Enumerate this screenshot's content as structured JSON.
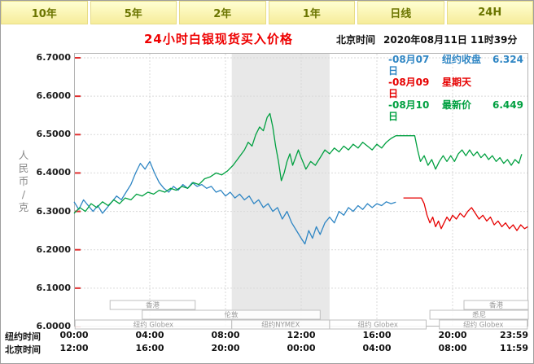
{
  "tabs": {
    "items": [
      "10年",
      "5年",
      "2年",
      "1年",
      "日线",
      "24H"
    ],
    "active": "24H"
  },
  "header": {
    "title": "24小时白银现货买入价格",
    "timestamp_label": "北京时间",
    "timestamp": "2020年08月11日 11时39分"
  },
  "legend": {
    "items": [
      {
        "date": "-08月07日",
        "label": "纽约收盘",
        "value": "6.324",
        "color": "#2f86c4"
      },
      {
        "date": "-08月09日",
        "label": "星期天",
        "value": "",
        "color": "#e60000"
      },
      {
        "date": "-08月10日",
        "label": "最新价",
        "value": "6.449",
        "color": "#00a040"
      }
    ]
  },
  "y_axis": {
    "unit_label": "人民币/克",
    "ticks": [
      "6.7000",
      "6.6000",
      "6.5000",
      "6.4000",
      "6.3000",
      "6.2000",
      "6.1000",
      "6.0000"
    ]
  },
  "x_axis": {
    "tick_hours": [
      0,
      4,
      8,
      12,
      16,
      20,
      24
    ],
    "rows": [
      {
        "label": "纽约时间",
        "ticks": [
          "00:00",
          "04:00",
          "08:00",
          "12:00",
          "16:00",
          "20:00",
          "23:59"
        ]
      },
      {
        "label": "北京时间",
        "ticks": [
          "12:00",
          "16:00",
          "20:00",
          "00:00",
          "04:00",
          "08:00",
          "11:59"
        ]
      }
    ]
  },
  "sessions": [
    {
      "row": 0,
      "label": "香港",
      "start": 1.9,
      "end": 6.4
    },
    {
      "row": 0,
      "label": "香港",
      "start": 20.6,
      "end": 24
    },
    {
      "row": 1,
      "label": "伦敦",
      "start": 3.6,
      "end": 13.0
    },
    {
      "row": 1,
      "label": "悉尼",
      "start": 18.8,
      "end": 24
    },
    {
      "row": 2,
      "label": "纽约 Globex",
      "start": 0.05,
      "end": 8.33
    },
    {
      "row": 2,
      "label": "纽约NYMEX",
      "start": 8.33,
      "end": 13.5
    },
    {
      "row": 2,
      "label": "纽约 Globex",
      "start": 13.5,
      "end": 18.6
    },
    {
      "row": 2,
      "label": "纽约 Globex",
      "start": 19.3,
      "end": 23.95
    }
  ],
  "chart_data": {
    "type": "line",
    "title": "24小时白银现货买入价格",
    "time_note": "北京时间 2020年08月11日 11时39分",
    "ylabel": "人民币/克",
    "ylim": [
      6.0,
      6.7
    ],
    "x_unit": "hour (纽约时间 00:00-23:59)",
    "grid": true,
    "shade_color": "#e8e8e8",
    "shaded_region_hours": [
      8.33,
      13.5
    ],
    "series": [
      {
        "name": "08月07日",
        "desc": "纽约收盘 6.324",
        "color": "#2f86c4",
        "points": [
          [
            0,
            6.325
          ],
          [
            0.25,
            6.305
          ],
          [
            0.5,
            6.33
          ],
          [
            0.75,
            6.315
          ],
          [
            1,
            6.3
          ],
          [
            1.25,
            6.315
          ],
          [
            1.5,
            6.295
          ],
          [
            1.75,
            6.31
          ],
          [
            2,
            6.325
          ],
          [
            2.25,
            6.34
          ],
          [
            2.5,
            6.33
          ],
          [
            2.75,
            6.35
          ],
          [
            3,
            6.37
          ],
          [
            3.25,
            6.4
          ],
          [
            3.5,
            6.425
          ],
          [
            3.75,
            6.41
          ],
          [
            4,
            6.43
          ],
          [
            4.25,
            6.4
          ],
          [
            4.5,
            6.375
          ],
          [
            4.75,
            6.36
          ],
          [
            5,
            6.35
          ],
          [
            5.25,
            6.365
          ],
          [
            5.5,
            6.355
          ],
          [
            5.75,
            6.37
          ],
          [
            6,
            6.36
          ],
          [
            6.25,
            6.375
          ],
          [
            6.5,
            6.365
          ],
          [
            6.75,
            6.37
          ],
          [
            7,
            6.36
          ],
          [
            7.25,
            6.365
          ],
          [
            7.5,
            6.35
          ],
          [
            7.75,
            6.355
          ],
          [
            8,
            6.34
          ],
          [
            8.25,
            6.35
          ],
          [
            8.5,
            6.335
          ],
          [
            8.75,
            6.345
          ],
          [
            9,
            6.33
          ],
          [
            9.25,
            6.34
          ],
          [
            9.5,
            6.32
          ],
          [
            9.75,
            6.33
          ],
          [
            10,
            6.31
          ],
          [
            10.25,
            6.32
          ],
          [
            10.5,
            6.3
          ],
          [
            10.75,
            6.31
          ],
          [
            11,
            6.28
          ],
          [
            11.25,
            6.3
          ],
          [
            11.5,
            6.27
          ],
          [
            11.75,
            6.25
          ],
          [
            12,
            6.23
          ],
          [
            12.2,
            6.215
          ],
          [
            12.4,
            6.25
          ],
          [
            12.6,
            6.23
          ],
          [
            12.8,
            6.26
          ],
          [
            13,
            6.24
          ],
          [
            13.25,
            6.27
          ],
          [
            13.5,
            6.285
          ],
          [
            13.75,
            6.27
          ],
          [
            14,
            6.3
          ],
          [
            14.25,
            6.29
          ],
          [
            14.5,
            6.31
          ],
          [
            14.75,
            6.3
          ],
          [
            15,
            6.315
          ],
          [
            15.25,
            6.305
          ],
          [
            15.5,
            6.32
          ],
          [
            15.75,
            6.31
          ],
          [
            16,
            6.32
          ],
          [
            16.25,
            6.315
          ],
          [
            16.5,
            6.325
          ],
          [
            16.75,
            6.32
          ],
          [
            17,
            6.324
          ]
        ]
      },
      {
        "name": "08月09日",
        "desc": "星期天",
        "color": "#e60000",
        "points": [
          [
            17.4,
            6.335
          ],
          [
            18.35,
            6.335
          ],
          [
            18.5,
            6.32
          ],
          [
            18.65,
            6.29
          ],
          [
            18.8,
            6.27
          ],
          [
            18.95,
            6.285
          ],
          [
            19.1,
            6.26
          ],
          [
            19.25,
            6.275
          ],
          [
            19.4,
            6.255
          ],
          [
            19.55,
            6.27
          ],
          [
            19.7,
            6.285
          ],
          [
            19.85,
            6.275
          ],
          [
            20,
            6.29
          ],
          [
            20.2,
            6.28
          ],
          [
            20.4,
            6.295
          ],
          [
            20.6,
            6.285
          ],
          [
            20.8,
            6.3
          ],
          [
            21,
            6.31
          ],
          [
            21.2,
            6.295
          ],
          [
            21.4,
            6.28
          ],
          [
            21.6,
            6.29
          ],
          [
            21.8,
            6.275
          ],
          [
            22,
            6.285
          ],
          [
            22.2,
            6.265
          ],
          [
            22.4,
            6.275
          ],
          [
            22.6,
            6.26
          ],
          [
            22.8,
            6.27
          ],
          [
            23,
            6.255
          ],
          [
            23.2,
            6.265
          ],
          [
            23.4,
            6.25
          ],
          [
            23.6,
            6.265
          ],
          [
            23.8,
            6.255
          ],
          [
            23.97,
            6.26
          ]
        ]
      },
      {
        "name": "08月10日",
        "desc": "最新价 6.449",
        "color": "#00a040",
        "points": [
          [
            0,
            6.295
          ],
          [
            0.3,
            6.31
          ],
          [
            0.6,
            6.3
          ],
          [
            0.9,
            6.32
          ],
          [
            1.2,
            6.31
          ],
          [
            1.5,
            6.325
          ],
          [
            1.8,
            6.315
          ],
          [
            2.1,
            6.33
          ],
          [
            2.4,
            6.32
          ],
          [
            2.7,
            6.335
          ],
          [
            3,
            6.33
          ],
          [
            3.3,
            6.345
          ],
          [
            3.6,
            6.34
          ],
          [
            3.9,
            6.35
          ],
          [
            4.2,
            6.345
          ],
          [
            4.5,
            6.355
          ],
          [
            4.8,
            6.35
          ],
          [
            5.1,
            6.36
          ],
          [
            5.4,
            6.355
          ],
          [
            5.7,
            6.365
          ],
          [
            6,
            6.36
          ],
          [
            6.3,
            6.375
          ],
          [
            6.6,
            6.37
          ],
          [
            6.9,
            6.385
          ],
          [
            7.2,
            6.39
          ],
          [
            7.5,
            6.4
          ],
          [
            7.8,
            6.395
          ],
          [
            8.1,
            6.405
          ],
          [
            8.4,
            6.42
          ],
          [
            8.7,
            6.44
          ],
          [
            9,
            6.46
          ],
          [
            9.2,
            6.48
          ],
          [
            9.4,
            6.47
          ],
          [
            9.6,
            6.5
          ],
          [
            9.8,
            6.52
          ],
          [
            10,
            6.51
          ],
          [
            10.2,
            6.545
          ],
          [
            10.35,
            6.555
          ],
          [
            10.5,
            6.52
          ],
          [
            10.65,
            6.47
          ],
          [
            10.8,
            6.43
          ],
          [
            10.95,
            6.38
          ],
          [
            11.1,
            6.4
          ],
          [
            11.25,
            6.43
          ],
          [
            11.4,
            6.45
          ],
          [
            11.55,
            6.42
          ],
          [
            11.7,
            6.44
          ],
          [
            11.85,
            6.46
          ],
          [
            12,
            6.44
          ],
          [
            12.25,
            6.41
          ],
          [
            12.5,
            6.43
          ],
          [
            12.75,
            6.42
          ],
          [
            13,
            6.44
          ],
          [
            13.25,
            6.46
          ],
          [
            13.5,
            6.45
          ],
          [
            13.75,
            6.465
          ],
          [
            14,
            6.455
          ],
          [
            14.25,
            6.47
          ],
          [
            14.5,
            6.46
          ],
          [
            14.75,
            6.475
          ],
          [
            15,
            6.465
          ],
          [
            15.25,
            6.48
          ],
          [
            15.5,
            6.47
          ],
          [
            15.75,
            6.46
          ],
          [
            16,
            6.475
          ],
          [
            16.25,
            6.465
          ],
          [
            16.5,
            6.48
          ],
          [
            16.75,
            6.49
          ],
          [
            17,
            6.497
          ],
          [
            18,
            6.497
          ],
          [
            18.15,
            6.46
          ],
          [
            18.3,
            6.43
          ],
          [
            18.5,
            6.445
          ],
          [
            18.7,
            6.42
          ],
          [
            18.9,
            6.435
          ],
          [
            19.1,
            6.41
          ],
          [
            19.3,
            6.43
          ],
          [
            19.5,
            6.445
          ],
          [
            19.7,
            6.43
          ],
          [
            19.9,
            6.445
          ],
          [
            20.1,
            6.43
          ],
          [
            20.3,
            6.45
          ],
          [
            20.5,
            6.46
          ],
          [
            20.7,
            6.445
          ],
          [
            20.9,
            6.46
          ],
          [
            21.1,
            6.445
          ],
          [
            21.3,
            6.455
          ],
          [
            21.5,
            6.44
          ],
          [
            21.7,
            6.45
          ],
          [
            21.9,
            6.435
          ],
          [
            22.1,
            6.445
          ],
          [
            22.3,
            6.43
          ],
          [
            22.5,
            6.44
          ],
          [
            22.7,
            6.425
          ],
          [
            22.9,
            6.435
          ],
          [
            23.1,
            6.42
          ],
          [
            23.3,
            6.435
          ],
          [
            23.5,
            6.425
          ],
          [
            23.65,
            6.449
          ]
        ]
      }
    ]
  }
}
